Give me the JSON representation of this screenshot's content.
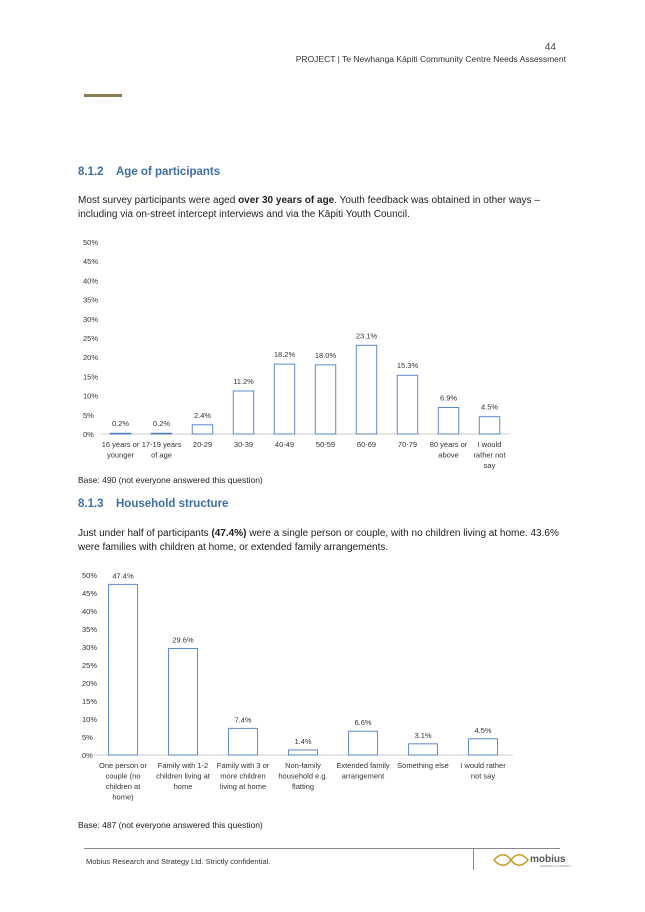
{
  "header": {
    "page_number": "44",
    "running_title": "PROJECT | Te Newhanga Kāpiti Community Centre Needs Assessment"
  },
  "section_age": {
    "number": "8.1.2",
    "title": "Age of participants",
    "para_1": "Most survey participants were aged ",
    "para_bold": "over 30 years of age",
    "para_2": ".  Youth feedback was obtained in other ways – including via on-street intercept interviews and via the Kāpiti Youth Council.",
    "base_note": "Base:  490 (not everyone answered this question)"
  },
  "section_household": {
    "number": "8.1.3",
    "title": "Household structure",
    "para_1": "Just under half of participants ",
    "para_bold": "(47.4%)",
    "para_2": " were a single person or couple, with no children living at home.  43.6% were families with children at home, or extended family arrangements.",
    "base_note": "Base:  487 (not everyone answered this question)"
  },
  "footer": {
    "text": "Mobius Research and Strategy Ltd.  Strictly confidential.",
    "logo_text": "mobius",
    "logo_tagline": "RESEARCH & STRATEGY"
  },
  "colors": {
    "heading": "#3d6ea8",
    "bar_stroke": "#4a7cc4",
    "bar_fill": "#ffffff",
    "logo": "#c99a2e"
  },
  "chart_data": [
    {
      "type": "bar",
      "categories": [
        [
          "16 years or",
          "younger"
        ],
        [
          "17-19 years",
          "of age"
        ],
        [
          "20-29"
        ],
        [
          "30-39"
        ],
        [
          "40-49"
        ],
        [
          "50-59"
        ],
        [
          "60-69"
        ],
        [
          "70-79"
        ],
        [
          "80 years or",
          "above"
        ],
        [
          "I would",
          "rather not",
          "say"
        ]
      ],
      "values": [
        0.2,
        0.2,
        2.4,
        11.2,
        18.2,
        18.0,
        23.1,
        15.3,
        6.9,
        4.5
      ],
      "data_labels": [
        "0.2%",
        "0.2%",
        "2.4%",
        "11.2%",
        "18.2%",
        "18.0%",
        "23.1%",
        "15.3%",
        "6.9%",
        "4.5%"
      ],
      "y_ticks": [
        "0%",
        "5%",
        "10%",
        "15%",
        "20%",
        "25%",
        "30%",
        "35%",
        "40%",
        "45%",
        "50%"
      ],
      "ylim": [
        0,
        50
      ],
      "grid": false
    },
    {
      "type": "bar",
      "categories": [
        [
          "One person or",
          "couple (no",
          "children at",
          "home)"
        ],
        [
          "Family with 1-2",
          "children living at",
          "home"
        ],
        [
          "Family with 3 or",
          "more children",
          "living at home"
        ],
        [
          "Non-family",
          "household e.g.",
          "flatting"
        ],
        [
          "Extended family",
          "arrangement"
        ],
        [
          "Something else"
        ],
        [
          "I would rather",
          "not say"
        ]
      ],
      "values": [
        47.4,
        29.6,
        7.4,
        1.4,
        6.6,
        3.1,
        4.5
      ],
      "data_labels": [
        "47.4%",
        "29.6%",
        "7.4%",
        "1.4%",
        "6.6%",
        "3.1%",
        "4.5%"
      ],
      "y_ticks": [
        "0%",
        "5%",
        "10%",
        "15%",
        "20%",
        "25%",
        "30%",
        "35%",
        "40%",
        "45%",
        "50%"
      ],
      "ylim": [
        0,
        50
      ],
      "grid": false
    }
  ]
}
